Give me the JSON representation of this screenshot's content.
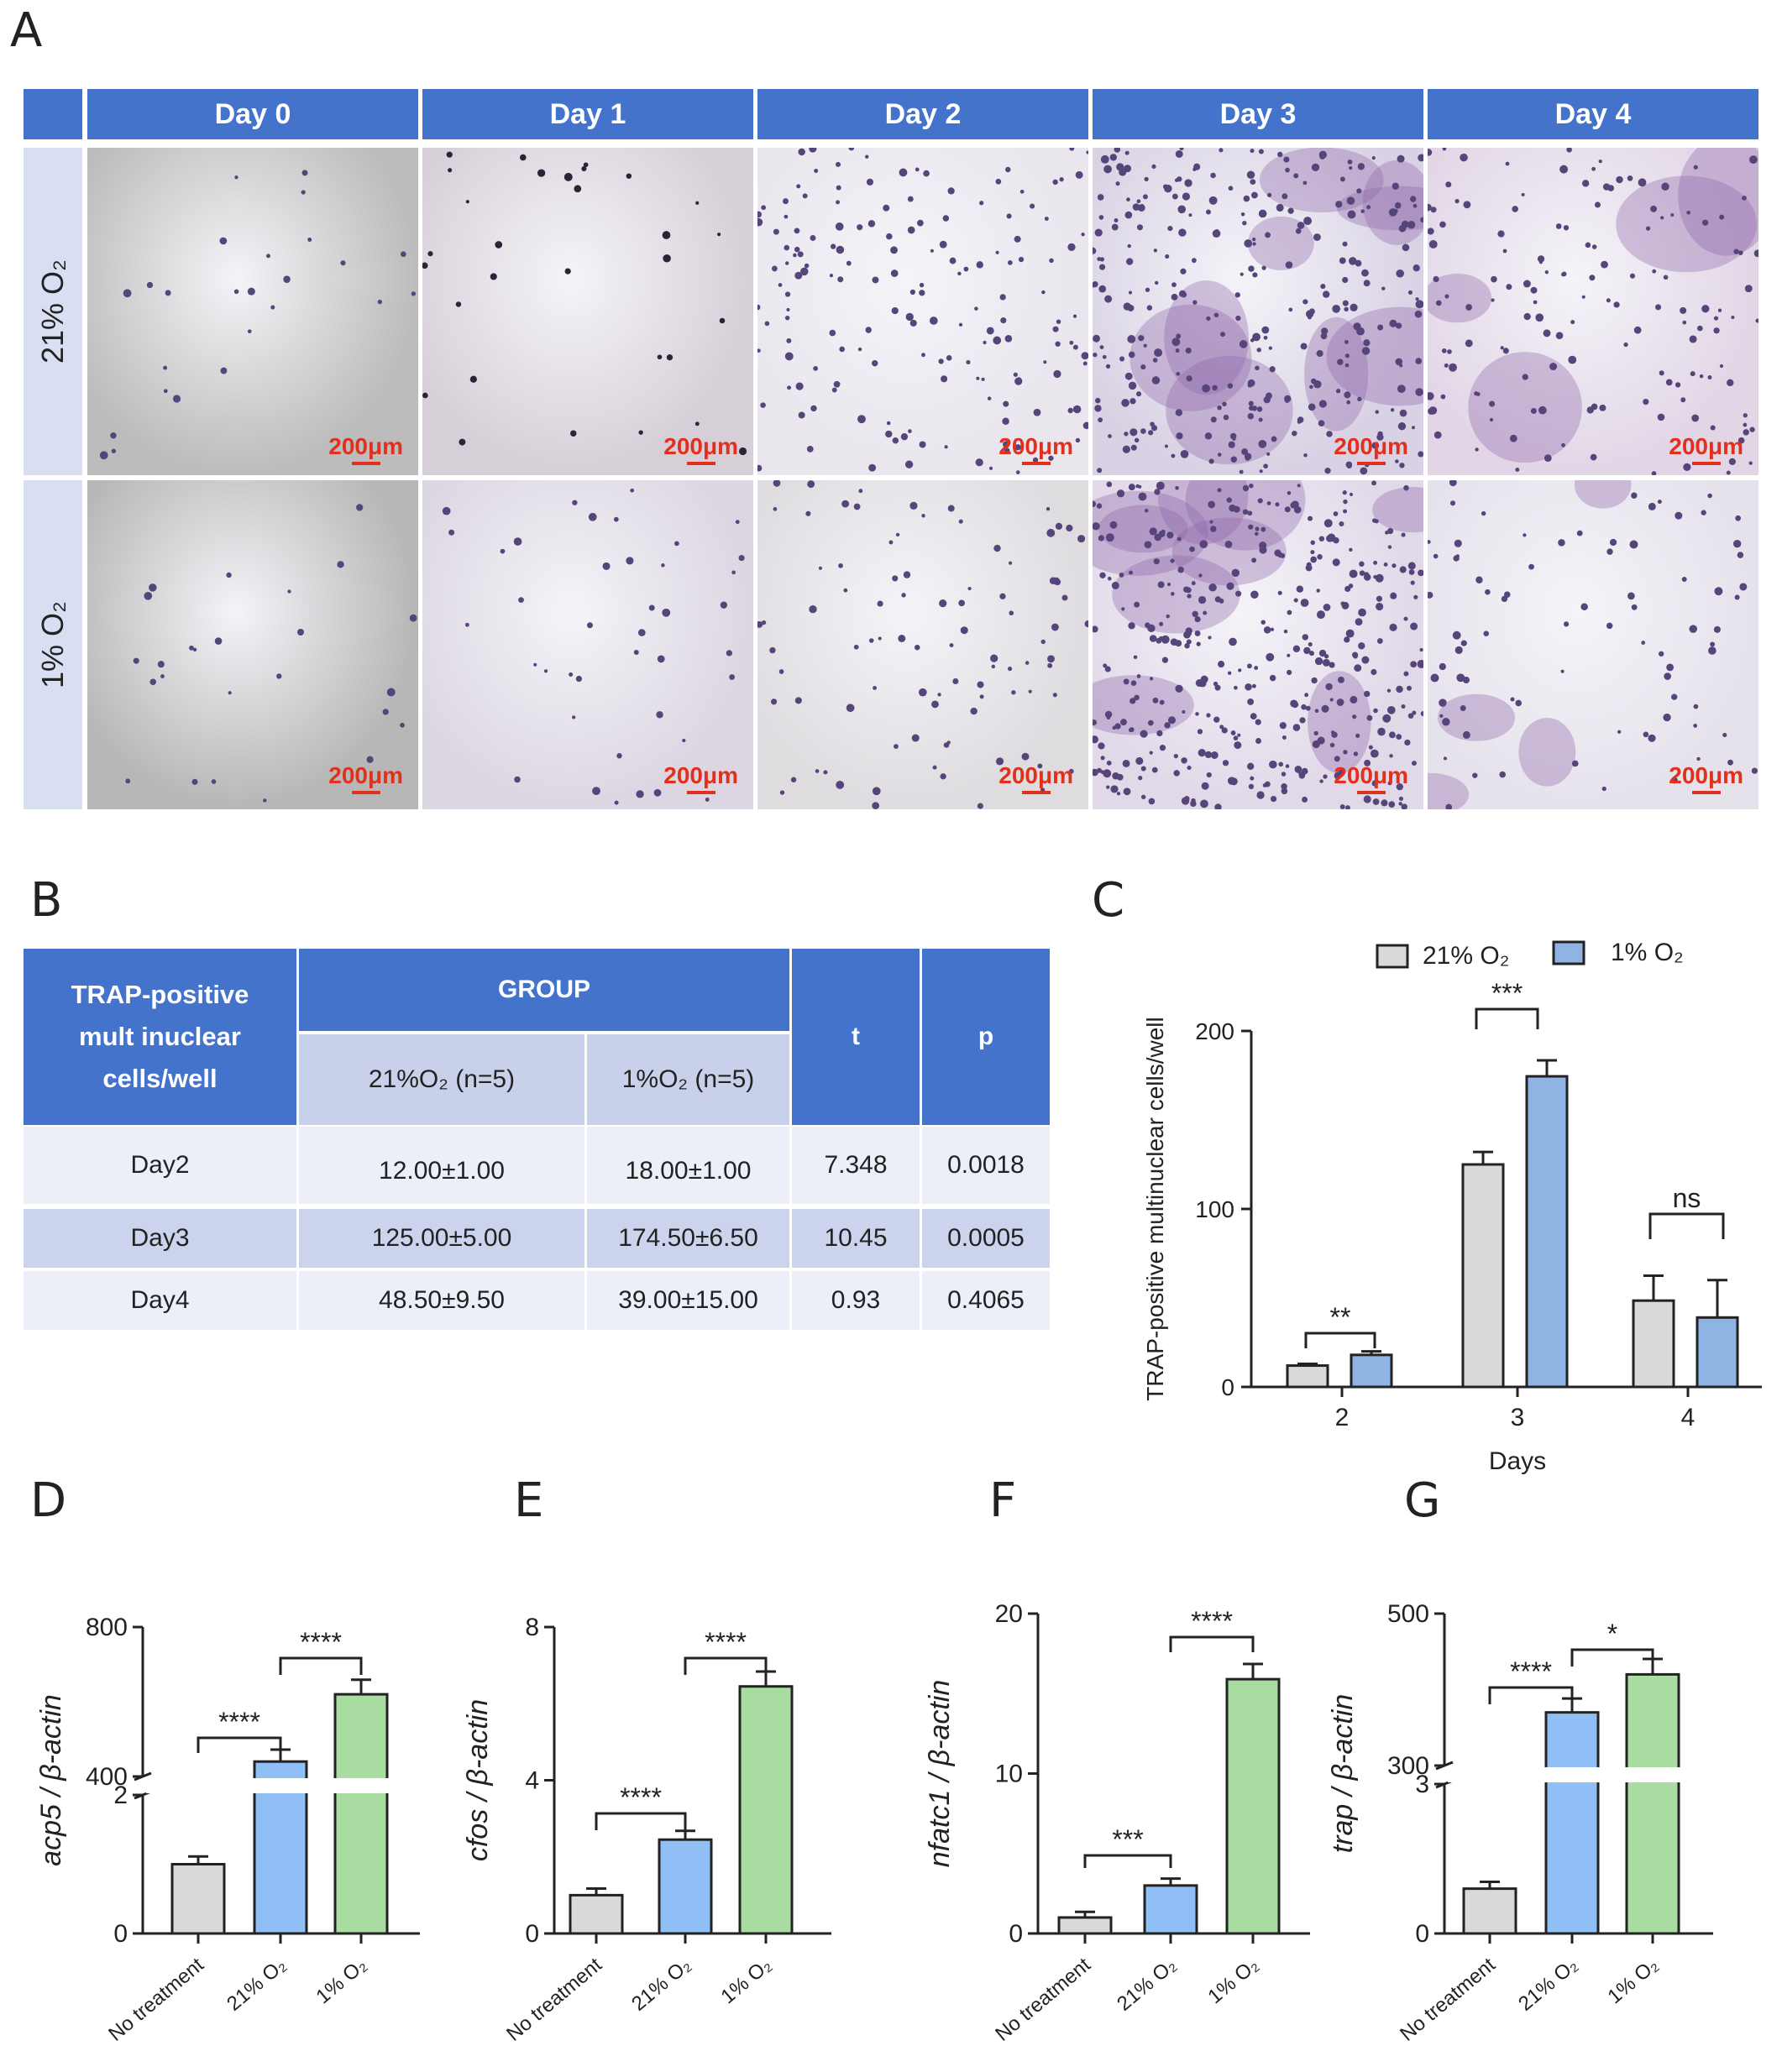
{
  "panels": {
    "A": "A",
    "B": "B",
    "C": "C",
    "D": "D",
    "E": "E",
    "F": "F",
    "G": "G"
  },
  "panel_a": {
    "days": [
      "Day 0",
      "Day 1",
      "Day 2",
      "Day 3",
      "Day 4"
    ],
    "conditions": [
      "21% O₂",
      "1% O₂"
    ],
    "scale_bar": "200μm"
  },
  "table_b": {
    "header_label": "TRAP-positive mult inuclear cells/well",
    "group_label": "GROUP",
    "col_21": "21%O₂ (n=5)",
    "col_1": "1%O₂ (n=5)",
    "col_t": "t",
    "col_p": "p",
    "rows": [
      {
        "day": "Day2",
        "g21": "12.00±1.00",
        "g1": "18.00±1.00",
        "t": "7.348",
        "p": "0.0018"
      },
      {
        "day": "Day3",
        "g21": "125.00±5.00",
        "g1": "174.50±6.50",
        "t": "10.45",
        "p": "0.0005"
      },
      {
        "day": "Day4",
        "g21": "48.50±9.50",
        "g1": "39.00±15.00",
        "t": "0.93",
        "p": "0.4065"
      }
    ]
  },
  "colors": {
    "gray": "#d9d9d9",
    "blue_c": "#8fb4e3",
    "blue": "#90bff5",
    "green": "#a8dca1",
    "header": "#4473cc"
  },
  "chart_data": [
    {
      "panel": "C",
      "type": "bar",
      "categories": [
        "2",
        "3",
        "4"
      ],
      "xlabel": "Days",
      "ylabel": "TRAP-positive multinuclear cells/well",
      "ylim": [
        0,
        200
      ],
      "yticks": [
        "0",
        "100",
        "200"
      ],
      "legend": [
        "21% O₂",
        "1% O₂"
      ],
      "legend_position": "top",
      "series": [
        {
          "name": "21% O₂",
          "values": [
            12,
            125,
            48.5
          ],
          "errors": [
            1,
            7,
            14
          ]
        },
        {
          "name": "1% O₂",
          "values": [
            18,
            174.5,
            39
          ],
          "errors": [
            2,
            9,
            21
          ]
        }
      ],
      "significance": [
        "**",
        "***",
        "ns"
      ]
    },
    {
      "panel": "D",
      "type": "bar",
      "categories": [
        "No treatment",
        "21% O₂",
        "1% O₂"
      ],
      "ylabel": "acp5 / β-actin",
      "ylim": [
        0,
        800
      ],
      "axis_break": [
        2,
        400
      ],
      "yticks": [
        "0",
        "2",
        "400",
        "800"
      ],
      "values": [
        1,
        440,
        620
      ],
      "significance": [
        "****",
        "****"
      ]
    },
    {
      "panel": "E",
      "type": "bar",
      "categories": [
        "No treatment",
        "21% O₂",
        "1% O₂"
      ],
      "ylabel": "cfos / β-actin",
      "ylim": [
        0,
        8
      ],
      "yticks": [
        "0",
        "4",
        "8"
      ],
      "values": [
        1,
        2.45,
        6.45
      ],
      "significance": [
        "****",
        "****"
      ]
    },
    {
      "panel": "F",
      "type": "bar",
      "categories": [
        "No treatment",
        "21% O₂",
        "1% O₂"
      ],
      "ylabel": "nfatc1 / β-actin",
      "ylim": [
        0,
        20
      ],
      "yticks": [
        "0",
        "10",
        "20"
      ],
      "values": [
        1,
        3,
        15.9
      ],
      "significance": [
        "***",
        "****"
      ]
    },
    {
      "panel": "G",
      "type": "bar",
      "categories": [
        "No treatment",
        "21% O₂",
        "1% O₂"
      ],
      "ylabel": "trap / β-actin",
      "ylim": [
        0,
        500
      ],
      "axis_break": [
        3,
        300
      ],
      "yticks": [
        "0",
        "3",
        "300",
        "500"
      ],
      "values": [
        0.9,
        370,
        420
      ],
      "significance": [
        "****",
        "*"
      ]
    }
  ]
}
